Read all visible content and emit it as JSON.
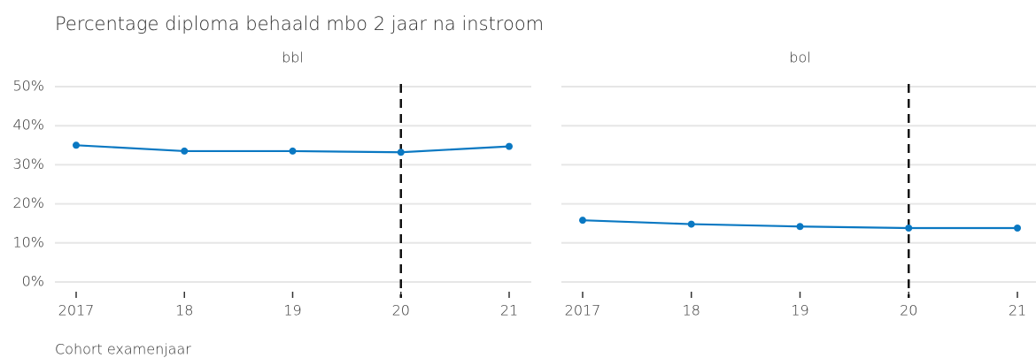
{
  "title": "Percentage diploma behaald mbo 2 jaar na instroom",
  "x_label": "Cohort examenjaar",
  "chart_data": [
    {
      "type": "line",
      "title": "bbl",
      "categories": [
        "2017",
        "18",
        "19",
        "20",
        "21"
      ],
      "values": [
        35,
        33.5,
        33.5,
        33.2,
        34.7
      ],
      "color": "#0a78c2",
      "ylim": [
        0,
        50
      ],
      "yticks": [
        {
          "value": 0,
          "label": "0%"
        },
        {
          "value": 10,
          "label": "10%"
        },
        {
          "value": 20,
          "label": "20%"
        },
        {
          "value": 30,
          "label": "30%"
        },
        {
          "value": 40,
          "label": "40%"
        },
        {
          "value": 50,
          "label": "50%"
        }
      ],
      "grid": true,
      "vline": "20"
    },
    {
      "type": "line",
      "title": "bol",
      "categories": [
        "2017",
        "18",
        "19",
        "20",
        "21"
      ],
      "values": [
        15.8,
        14.8,
        14.2,
        13.8,
        13.8
      ],
      "color": "#0a78c2",
      "ylim": [
        0,
        50
      ],
      "yticks": [
        {
          "value": 0,
          "label": "0%"
        },
        {
          "value": 10,
          "label": "10%"
        },
        {
          "value": 20,
          "label": "20%"
        },
        {
          "value": 30,
          "label": "30%"
        },
        {
          "value": 40,
          "label": "40%"
        },
        {
          "value": 50,
          "label": "50%"
        }
      ],
      "grid": true,
      "vline": "20"
    }
  ]
}
